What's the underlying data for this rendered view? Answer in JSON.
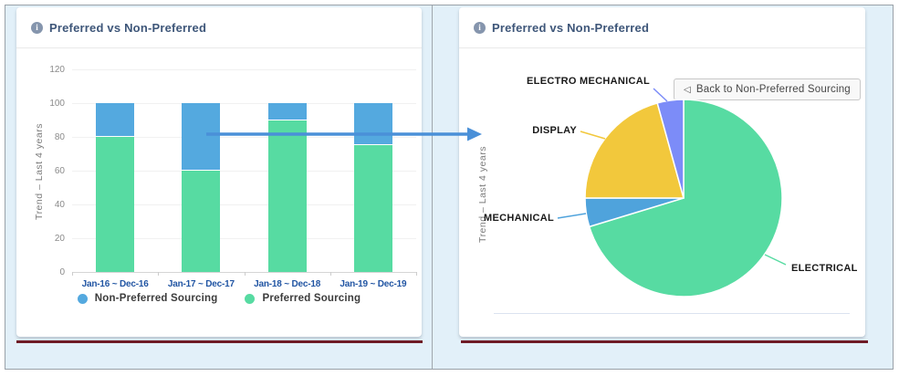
{
  "left_panel": {
    "header": {
      "title": "Preferred vs Non-Preferred",
      "info_icon": "i"
    },
    "legend": [
      {
        "label": "Non-Preferred Sourcing",
        "color": "#54a9df"
      },
      {
        "label": "Preferred Sourcing",
        "color": "#57dba2"
      }
    ]
  },
  "right_panel": {
    "header": {
      "title": "Preferred vs Non-Preferred",
      "info_icon": "i"
    },
    "back_button": {
      "icon": "◁",
      "label": "Back to Non-Preferred Sourcing"
    }
  },
  "colors": {
    "canvas_background": "#e2f0f9",
    "maroon_rule": "#6e1b26",
    "arrow": "#4a90d8",
    "title_text": "#3e5679",
    "x_label_text": "#2155a3"
  },
  "chart_data": [
    {
      "type": "bar",
      "stacked": true,
      "title": "Preferred vs Non-Preferred",
      "categories": [
        "Jan-16 ~ Dec-16",
        "Jan-17 ~ Dec-17",
        "Jan-18 ~ Dec-18",
        "Jan-19 ~ Dec-19"
      ],
      "series": [
        {
          "name": "Preferred Sourcing",
          "color": "#57dba2",
          "values": [
            80,
            60,
            90,
            75
          ]
        },
        {
          "name": "Non-Preferred Sourcing",
          "color": "#54a9df",
          "values": [
            20,
            40,
            10,
            25
          ]
        }
      ],
      "ylabel": "Trend – Last 4 years",
      "ylim": [
        0,
        120
      ],
      "yticks": [
        0,
        20,
        40,
        60,
        80,
        100,
        120
      ],
      "grid": true,
      "legend_position": "bottom"
    },
    {
      "type": "pie",
      "title": "Preferred vs Non-Preferred",
      "ylabel": "Trend – Last 4 years",
      "start_angle_deg": 0,
      "direction": "clockwise",
      "units": "percent (estimated from slice angles)",
      "slices": [
        {
          "label": "ELECTRICAL",
          "value": 70.3,
          "color": "#57dba2"
        },
        {
          "label": "MECHANICAL",
          "value": 4.7,
          "color": "#4fa3dc"
        },
        {
          "label": "DISPLAY",
          "value": 20.7,
          "color": "#f2c83c"
        },
        {
          "label": "ELECTRO MECHANICAL",
          "value": 4.3,
          "color": "#7c8cf8"
        }
      ]
    }
  ]
}
